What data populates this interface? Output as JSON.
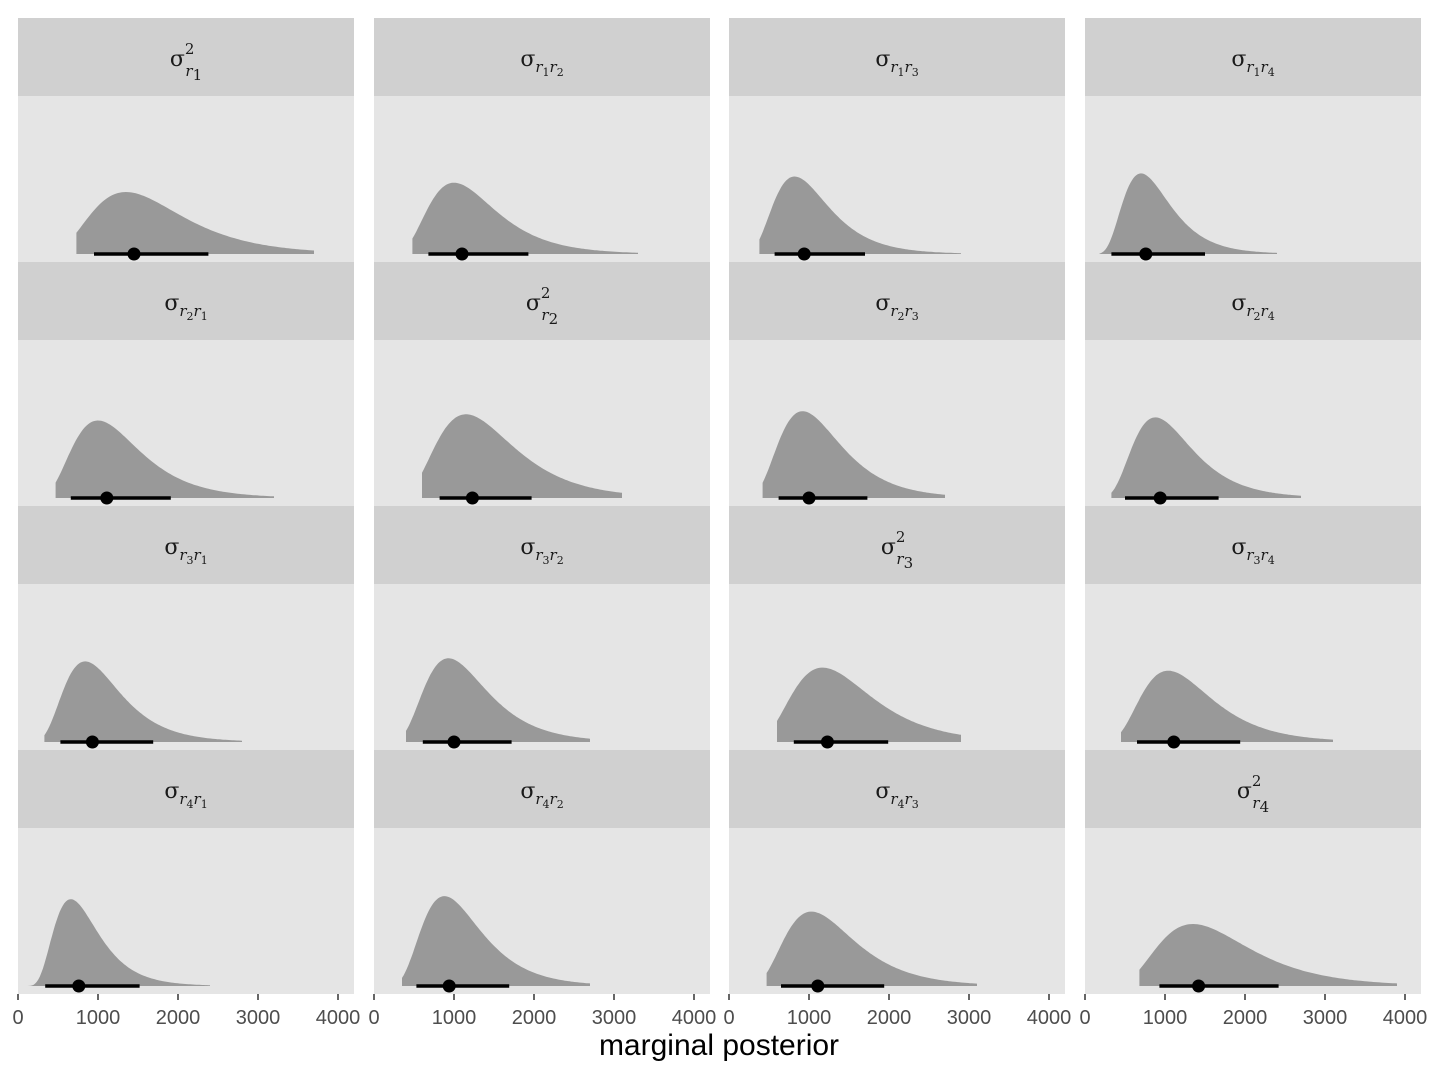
{
  "chart_data": {
    "type": "density",
    "xlabel": "marginal posterior",
    "ylabel": "",
    "xlim": [
      0,
      4200
    ],
    "xticks": [
      0,
      1000,
      2000,
      3000,
      4000
    ],
    "xtick_labels": [
      "0",
      "1000",
      "2000",
      "3000",
      "4000"
    ],
    "grid": false,
    "facets": [
      {
        "label": "σ²_{r1}",
        "mode": 1350,
        "median": 1450,
        "ci": [
          950,
          2380
        ],
        "range": [
          730,
          3700
        ],
        "scale": 1.0
      },
      {
        "label": "σ_{r1r2}",
        "mode": 1000,
        "median": 1100,
        "ci": [
          680,
          1930
        ],
        "range": [
          480,
          3300
        ],
        "scale": 1.15
      },
      {
        "label": "σ_{r1r3}",
        "mode": 820,
        "median": 940,
        "ci": [
          570,
          1700
        ],
        "range": [
          380,
          2900
        ],
        "scale": 1.25
      },
      {
        "label": "σ_{r1r4}",
        "mode": 700,
        "median": 760,
        "ci": [
          330,
          1500
        ],
        "range": [
          180,
          2400
        ],
        "scale": 1.3
      },
      {
        "label": "σ_{r2r1}",
        "mode": 1000,
        "median": 1110,
        "ci": [
          660,
          1910
        ],
        "range": [
          470,
          3200
        ],
        "scale": 1.25
      },
      {
        "label": "σ²_{r2}",
        "mode": 1150,
        "median": 1230,
        "ci": [
          820,
          1970
        ],
        "range": [
          600,
          3100
        ],
        "scale": 1.35
      },
      {
        "label": "σ_{r2r3}",
        "mode": 920,
        "median": 1000,
        "ci": [
          620,
          1730
        ],
        "range": [
          420,
          2700
        ],
        "scale": 1.4
      },
      {
        "label": "σ_{r2r4}",
        "mode": 880,
        "median": 940,
        "ci": [
          500,
          1670
        ],
        "range": [
          330,
          2700
        ],
        "scale": 1.3
      },
      {
        "label": "σ_{r3r1}",
        "mode": 840,
        "median": 930,
        "ci": [
          530,
          1690
        ],
        "range": [
          330,
          2800
        ],
        "scale": 1.3
      },
      {
        "label": "σ_{r3r2}",
        "mode": 930,
        "median": 1000,
        "ci": [
          610,
          1720
        ],
        "range": [
          400,
          2700
        ],
        "scale": 1.35
      },
      {
        "label": "σ²_{r3}",
        "mode": 1170,
        "median": 1230,
        "ci": [
          810,
          1990
        ],
        "range": [
          600,
          2900
        ],
        "scale": 1.2
      },
      {
        "label": "σ_{r3r4}",
        "mode": 1040,
        "median": 1110,
        "ci": [
          650,
          1940
        ],
        "range": [
          450,
          3100
        ],
        "scale": 1.15
      },
      {
        "label": "σ_{r4r1}",
        "mode": 660,
        "median": 760,
        "ci": [
          340,
          1520
        ],
        "range": [
          100,
          2400
        ],
        "scale": 1.4
      },
      {
        "label": "σ_{r4r2}",
        "mode": 880,
        "median": 940,
        "ci": [
          530,
          1690
        ],
        "range": [
          350,
          2700
        ],
        "scale": 1.45
      },
      {
        "label": "σ_{r4r3}",
        "mode": 1030,
        "median": 1110,
        "ci": [
          650,
          1940
        ],
        "range": [
          470,
          3100
        ],
        "scale": 1.2
      },
      {
        "label": "σ²_{r4}",
        "mode": 1350,
        "median": 1420,
        "ci": [
          930,
          2420
        ],
        "range": [
          680,
          3900
        ],
        "scale": 1.0
      }
    ],
    "colors": {
      "panel_background": "#e5e5e5",
      "strip_background": "#d0d0d0",
      "density_fill": "#999999",
      "interval": "#000000",
      "tick_label": "#4d4d4d"
    }
  }
}
